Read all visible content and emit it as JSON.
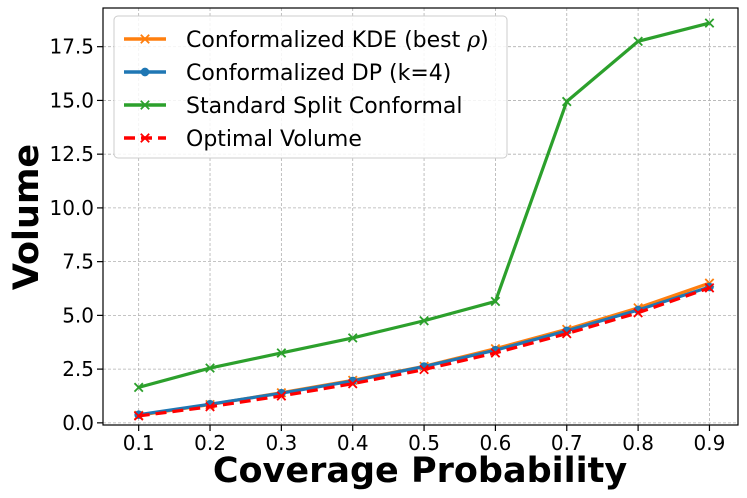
{
  "chart_data": {
    "type": "line",
    "title": "",
    "xlabel": "Coverage Probability",
    "ylabel": "Volume",
    "x": [
      0.1,
      0.2,
      0.3,
      0.4,
      0.5,
      0.6,
      0.7,
      0.8,
      0.9
    ],
    "x_tick_labels": [
      "0.1",
      "0.2",
      "0.3",
      "0.4",
      "0.5",
      "0.6",
      "0.7",
      "0.8",
      "0.9"
    ],
    "y_ticks": [
      0.0,
      2.5,
      5.0,
      7.5,
      10.0,
      12.5,
      15.0,
      17.5
    ],
    "y_tick_labels": [
      "0.0",
      "2.5",
      "5.0",
      "7.5",
      "10.0",
      "12.5",
      "15.0",
      "17.5"
    ],
    "xlim": [
      0.05,
      0.94
    ],
    "ylim": [
      -0.1,
      19.3
    ],
    "grid": true,
    "legend_position": "top-left",
    "series": [
      {
        "name": "Standard Split Conformal",
        "legend_label": "Standard Split Conformal",
        "color": "#2ca02c",
        "marker": "x",
        "dashed": false,
        "values": [
          1.65,
          2.55,
          3.25,
          3.95,
          4.75,
          5.65,
          14.95,
          17.75,
          18.6
        ]
      },
      {
        "name": "Conformalized KDE (best rho)",
        "legend_label": "Conformalized KDE (best ",
        "legend_symbol": "ρ",
        "legend_suffix": ")",
        "color": "#ff7f0e",
        "marker": "x",
        "dashed": false,
        "values": [
          0.35,
          0.85,
          1.4,
          1.98,
          2.63,
          3.45,
          4.35,
          5.35,
          6.5
        ]
      },
      {
        "name": "Conformalized DP (k=4)",
        "legend_label": "Conformalized DP (k=4)",
        "color": "#1f77b4",
        "marker": "o",
        "dashed": false,
        "values": [
          0.38,
          0.87,
          1.38,
          1.95,
          2.62,
          3.38,
          4.28,
          5.25,
          6.32
        ]
      },
      {
        "name": "Optimal Volume",
        "legend_label": "Optimal Volume",
        "color": "#ff0000",
        "marker": "x",
        "dashed": true,
        "values": [
          0.32,
          0.75,
          1.25,
          1.82,
          2.48,
          3.25,
          4.15,
          5.12,
          6.28
        ]
      }
    ],
    "legend_order": [
      "Conformalized KDE (best rho)",
      "Conformalized DP (k=4)",
      "Standard Split Conformal",
      "Optimal Volume"
    ]
  }
}
